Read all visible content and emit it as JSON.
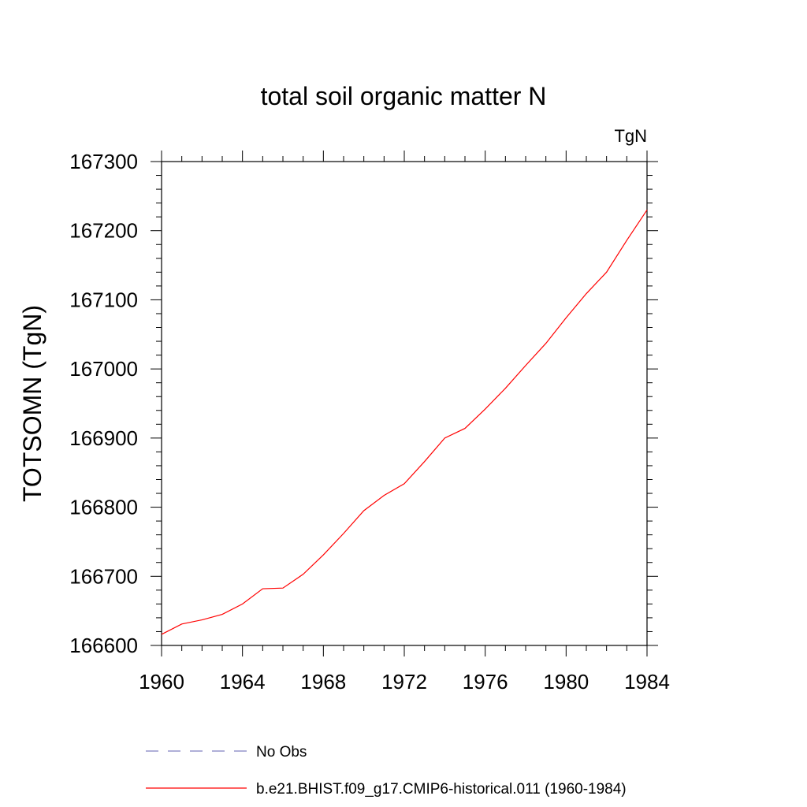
{
  "chart_data": {
    "type": "line",
    "title": "total soil organic matter N",
    "units_label": "TgN",
    "ylabel": "TOTSOMN  (TgN)",
    "xlabel": "",
    "xlim": [
      1960,
      1984
    ],
    "ylim": [
      166600,
      167300
    ],
    "xticks": [
      1960,
      1964,
      1968,
      1972,
      1976,
      1980,
      1984
    ],
    "xtick_labels": [
      "1960",
      "1964",
      "1968",
      "1972",
      "1976",
      "1980",
      "1984"
    ],
    "yticks": [
      166600,
      166700,
      166800,
      166900,
      167000,
      167100,
      167200,
      167300
    ],
    "ytick_labels": [
      "166600",
      "166700",
      "166800",
      "166900",
      "167000",
      "167100",
      "167200",
      "167300"
    ],
    "grid": false,
    "legend_position": "bottom",
    "series": [
      {
        "name": "b.e21.BHIST.f09_g17.CMIP6-historical.011 (1960-1984)",
        "color": "#ff0000",
        "style": "solid",
        "x": [
          1960,
          1961,
          1962,
          1963,
          1964,
          1965,
          1966,
          1967,
          1968,
          1969,
          1970,
          1971,
          1972,
          1973,
          1974,
          1975,
          1976,
          1977,
          1978,
          1979,
          1980,
          1981,
          1982,
          1983,
          1984
        ],
        "y": [
          166616,
          166631,
          166637,
          166645,
          166660,
          166682,
          166683,
          166703,
          166731,
          166762,
          166795,
          166817,
          166834,
          166866,
          166900,
          166914,
          166942,
          166972,
          167005,
          167037,
          167074,
          167109,
          167140,
          167186,
          167230
        ]
      }
    ],
    "legend": [
      {
        "label": "No Obs",
        "color": "#8080c0",
        "style": "dashed"
      },
      {
        "label": "b.e21.BHIST.f09_g17.CMIP6-historical.011 (1960-1984)",
        "color": "#ff0000",
        "style": "solid"
      }
    ]
  }
}
